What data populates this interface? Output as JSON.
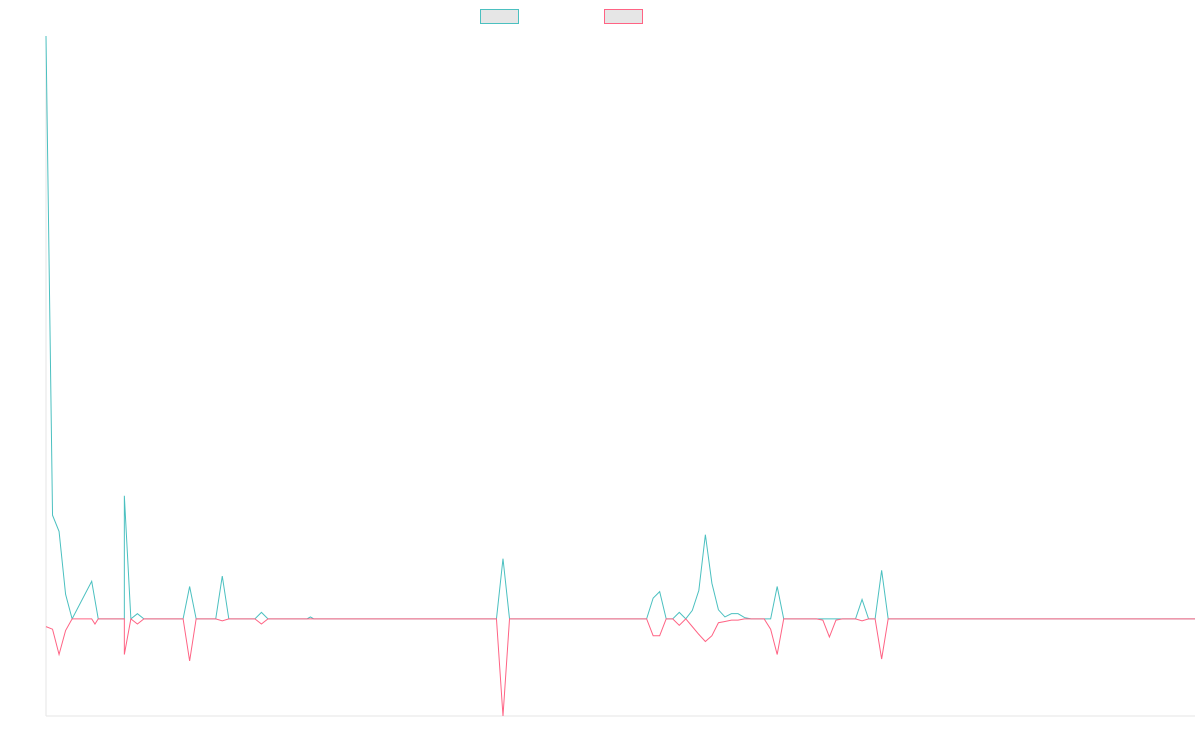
{
  "chart_data": {
    "type": "line",
    "title": "",
    "xlabel": "",
    "ylabel": "",
    "grid": false,
    "legend_position": "top-center",
    "ylim": [
      -150,
      900
    ],
    "x_count": 177,
    "series": [
      {
        "name": "",
        "color": "#4bc0c0",
        "spikes": [
          [
            0,
            900
          ],
          [
            1,
            160
          ],
          [
            2,
            135
          ],
          [
            3,
            38
          ],
          [
            4,
            0
          ],
          [
            7,
            58
          ],
          [
            8,
            0
          ],
          [
            12,
            0
          ],
          [
            12,
            190
          ],
          [
            13,
            0
          ],
          [
            14,
            8
          ],
          [
            15,
            0
          ],
          [
            21,
            0
          ],
          [
            22,
            50
          ],
          [
            23,
            0
          ],
          [
            26,
            0
          ],
          [
            27,
            66
          ],
          [
            28,
            0
          ],
          [
            32,
            0
          ],
          [
            33,
            10
          ],
          [
            34,
            0
          ],
          [
            40,
            0
          ],
          [
            40.5,
            3
          ],
          [
            41,
            0
          ],
          [
            69,
            0
          ],
          [
            70,
            93
          ],
          [
            71,
            0
          ],
          [
            92,
            0
          ],
          [
            93,
            32
          ],
          [
            94,
            42
          ],
          [
            95,
            0
          ],
          [
            96,
            0
          ],
          [
            97,
            10
          ],
          [
            98,
            0
          ],
          [
            99,
            13
          ],
          [
            100,
            44
          ],
          [
            101,
            130
          ],
          [
            102,
            55
          ],
          [
            103,
            14
          ],
          [
            104,
            3
          ],
          [
            105,
            8
          ],
          [
            106,
            8
          ],
          [
            107,
            2
          ],
          [
            108,
            0
          ],
          [
            111,
            0
          ],
          [
            112,
            50
          ],
          [
            113,
            0
          ],
          [
            118,
            0
          ],
          [
            119,
            0
          ],
          [
            120,
            0
          ],
          [
            121,
            0
          ],
          [
            122,
            0
          ],
          [
            123,
            0
          ],
          [
            124,
            0
          ],
          [
            125,
            30
          ],
          [
            126,
            0
          ],
          [
            127,
            0
          ],
          [
            128,
            75
          ],
          [
            129,
            0
          ],
          [
            176,
            0
          ]
        ]
      },
      {
        "name": "",
        "color": "#ff6384",
        "spikes": [
          [
            0,
            -12
          ],
          [
            1,
            -16
          ],
          [
            2,
            -55
          ],
          [
            3,
            -18
          ],
          [
            4,
            0
          ],
          [
            7,
            0
          ],
          [
            7.5,
            -8
          ],
          [
            8,
            0
          ],
          [
            12,
            0
          ],
          [
            12,
            -55
          ],
          [
            13,
            0
          ],
          [
            14,
            -8
          ],
          [
            15,
            0
          ],
          [
            21,
            0
          ],
          [
            22,
            -65
          ],
          [
            23,
            0
          ],
          [
            26,
            0
          ],
          [
            27,
            -3
          ],
          [
            28,
            0
          ],
          [
            32,
            0
          ],
          [
            33,
            -8
          ],
          [
            34,
            0
          ],
          [
            40,
            0
          ],
          [
            41,
            0
          ],
          [
            69,
            0
          ],
          [
            70,
            -150
          ],
          [
            71,
            0
          ],
          [
            92,
            0
          ],
          [
            93,
            -26
          ],
          [
            94,
            -26
          ],
          [
            95,
            0
          ],
          [
            96,
            0
          ],
          [
            97,
            -10
          ],
          [
            98,
            0
          ],
          [
            99,
            -12
          ],
          [
            100,
            -24
          ],
          [
            101,
            -35
          ],
          [
            102,
            -26
          ],
          [
            103,
            -6
          ],
          [
            104,
            -4
          ],
          [
            105,
            -2
          ],
          [
            106,
            -2
          ],
          [
            107,
            0
          ],
          [
            110,
            0
          ],
          [
            111,
            -16
          ],
          [
            112,
            -55
          ],
          [
            113,
            0
          ],
          [
            118,
            0
          ],
          [
            119,
            -2
          ],
          [
            120,
            -28
          ],
          [
            121,
            -2
          ],
          [
            122,
            0
          ],
          [
            123,
            0
          ],
          [
            124,
            0
          ],
          [
            125,
            -3
          ],
          [
            126,
            0
          ],
          [
            127,
            0
          ],
          [
            128,
            -62
          ],
          [
            129,
            0
          ],
          [
            176,
            0
          ]
        ]
      }
    ]
  }
}
